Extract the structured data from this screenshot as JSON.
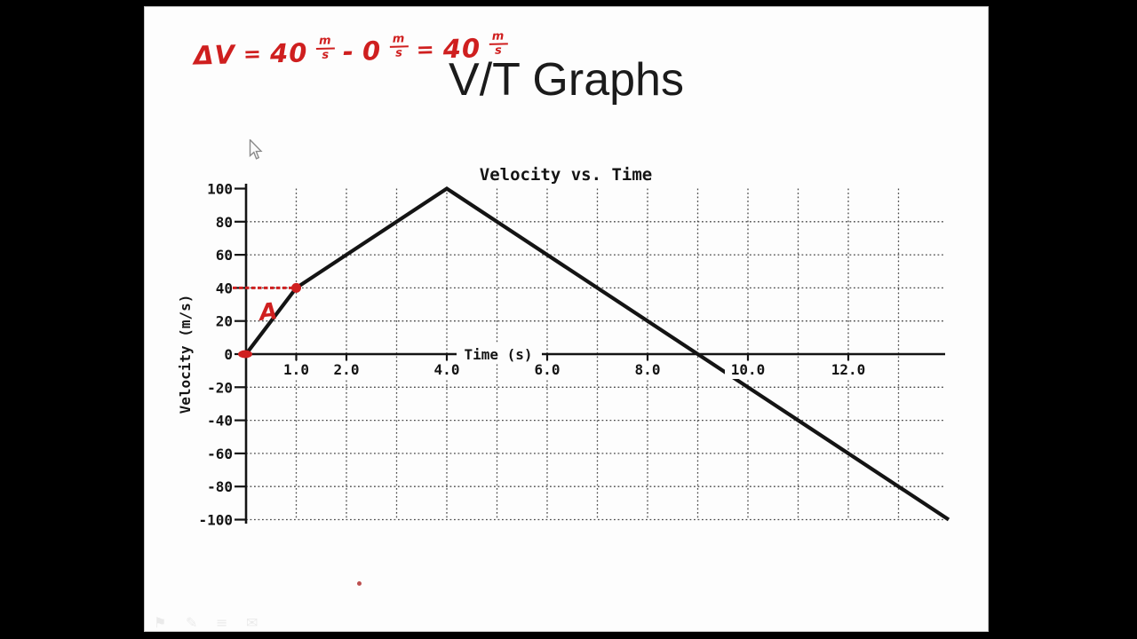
{
  "frame": {
    "letterbox_color": "#000000",
    "slide_bg": "#fdfdfd"
  },
  "slide": {
    "title": "V/T Graphs"
  },
  "equation": {
    "lhs": "ΔV",
    "eq1": "=",
    "v1": "40",
    "minus": "-",
    "v2": "0",
    "eq2": "=",
    "v3": "40",
    "unit": {
      "num": "m",
      "den": "s"
    },
    "color": "#cf1f1f"
  },
  "chart_data": {
    "type": "line",
    "title": "Velocity vs. Time",
    "xlabel": "Time (s)",
    "ylabel": "Velocity (m/s)",
    "xlim": [
      0,
      14
    ],
    "ylim": [
      -100,
      100
    ],
    "grid": {
      "style": "dotted",
      "vertical_t": [
        1,
        2,
        3,
        4,
        5,
        6,
        7,
        8,
        9,
        10,
        11,
        12,
        13
      ],
      "horizontal_v": [
        80,
        60,
        40,
        20,
        -20,
        -40,
        -60,
        -80,
        -100
      ]
    },
    "x_ticks": [
      {
        "t": 1,
        "label": "1.0"
      },
      {
        "t": 2,
        "label": "2.0"
      },
      {
        "t": 4,
        "label": "4.0"
      },
      {
        "t": 6,
        "label": "6.0"
      },
      {
        "t": 8,
        "label": "8.0"
      },
      {
        "t": 10,
        "label": "10.0"
      },
      {
        "t": 12,
        "label": "12.0"
      }
    ],
    "y_ticks": [
      {
        "v": 100,
        "label": "100"
      },
      {
        "v": 80,
        "label": "80"
      },
      {
        "v": 60,
        "label": "60"
      },
      {
        "v": 40,
        "label": "40"
      },
      {
        "v": 20,
        "label": "20"
      },
      {
        "v": 0,
        "label": "0"
      },
      {
        "v": -20,
        "label": "-20"
      },
      {
        "v": -40,
        "label": "-40"
      },
      {
        "v": -60,
        "label": "-60"
      },
      {
        "v": -80,
        "label": "-80"
      },
      {
        "v": -100,
        "label": "-100"
      }
    ],
    "series": [
      {
        "name": "velocity",
        "color": "#141414",
        "points": [
          [
            0,
            0
          ],
          [
            1,
            40
          ],
          [
            4,
            100
          ],
          [
            14,
            -100
          ]
        ]
      }
    ],
    "annotations": {
      "color": "#cf1f1f",
      "point": {
        "label": "A",
        "t": 1,
        "v": 40
      },
      "guide_v": 40,
      "origin_marked": true
    }
  },
  "cursor": {
    "visible": true
  },
  "faint_toolbar": {
    "glyphs": [
      "⚑",
      "✎",
      "≡",
      "✉"
    ]
  },
  "stray_mark": {
    "color": "#b03030"
  }
}
